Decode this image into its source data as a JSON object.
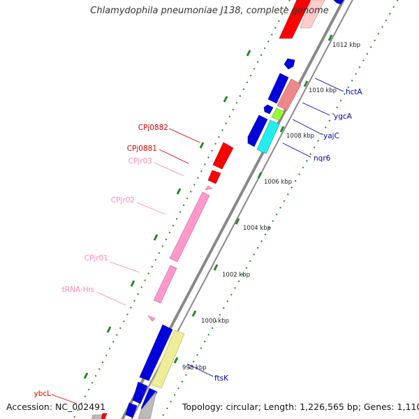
{
  "title": "Chlamydophila pneumoniae J138, complete genome",
  "accession_text": "Accession: NC_002491",
  "topology_text": "Topology: circular; Length: 1,226,565 bp; Genes: 1,110",
  "ticks": [
    {
      "label": "998 kbp",
      "kbp": 998
    },
    {
      "label": "1000 kbp",
      "kbp": 1000
    },
    {
      "label": "1002 kbp",
      "kbp": 1002
    },
    {
      "label": "1004 kbp",
      "kbp": 1004
    },
    {
      "label": "1006 kbp",
      "kbp": 1006
    },
    {
      "label": "1008 kbp",
      "kbp": 1008
    },
    {
      "label": "1010 kbp",
      "kbp": 1010
    },
    {
      "label": "1012 kbp",
      "kbp": 1012
    }
  ],
  "genes_right": [
    {
      "label": "hctA"
    },
    {
      "label": "ygcA"
    },
    {
      "label": "yajC"
    },
    {
      "label": "nqr6"
    },
    {
      "label": "ftsK"
    }
  ],
  "genes_left": [
    {
      "label": "CPj0882"
    },
    {
      "label": "CPj0881"
    },
    {
      "label": "CPjr03"
    },
    {
      "label": "CPjr02"
    },
    {
      "label": "CPjr01"
    },
    {
      "label": "tRNA-His"
    },
    {
      "label": "ybcL"
    }
  ],
  "colors": {
    "blue": "#0000dd",
    "red": "#ff0000",
    "pink": "#ff99cc",
    "salmon": "#ee8888",
    "green": "#99ff33",
    "cyan": "#22eeee",
    "khaki": "#eeee99",
    "gray": "#bbbbbb",
    "tick_green": "#228822",
    "backbone": "#888888"
  }
}
